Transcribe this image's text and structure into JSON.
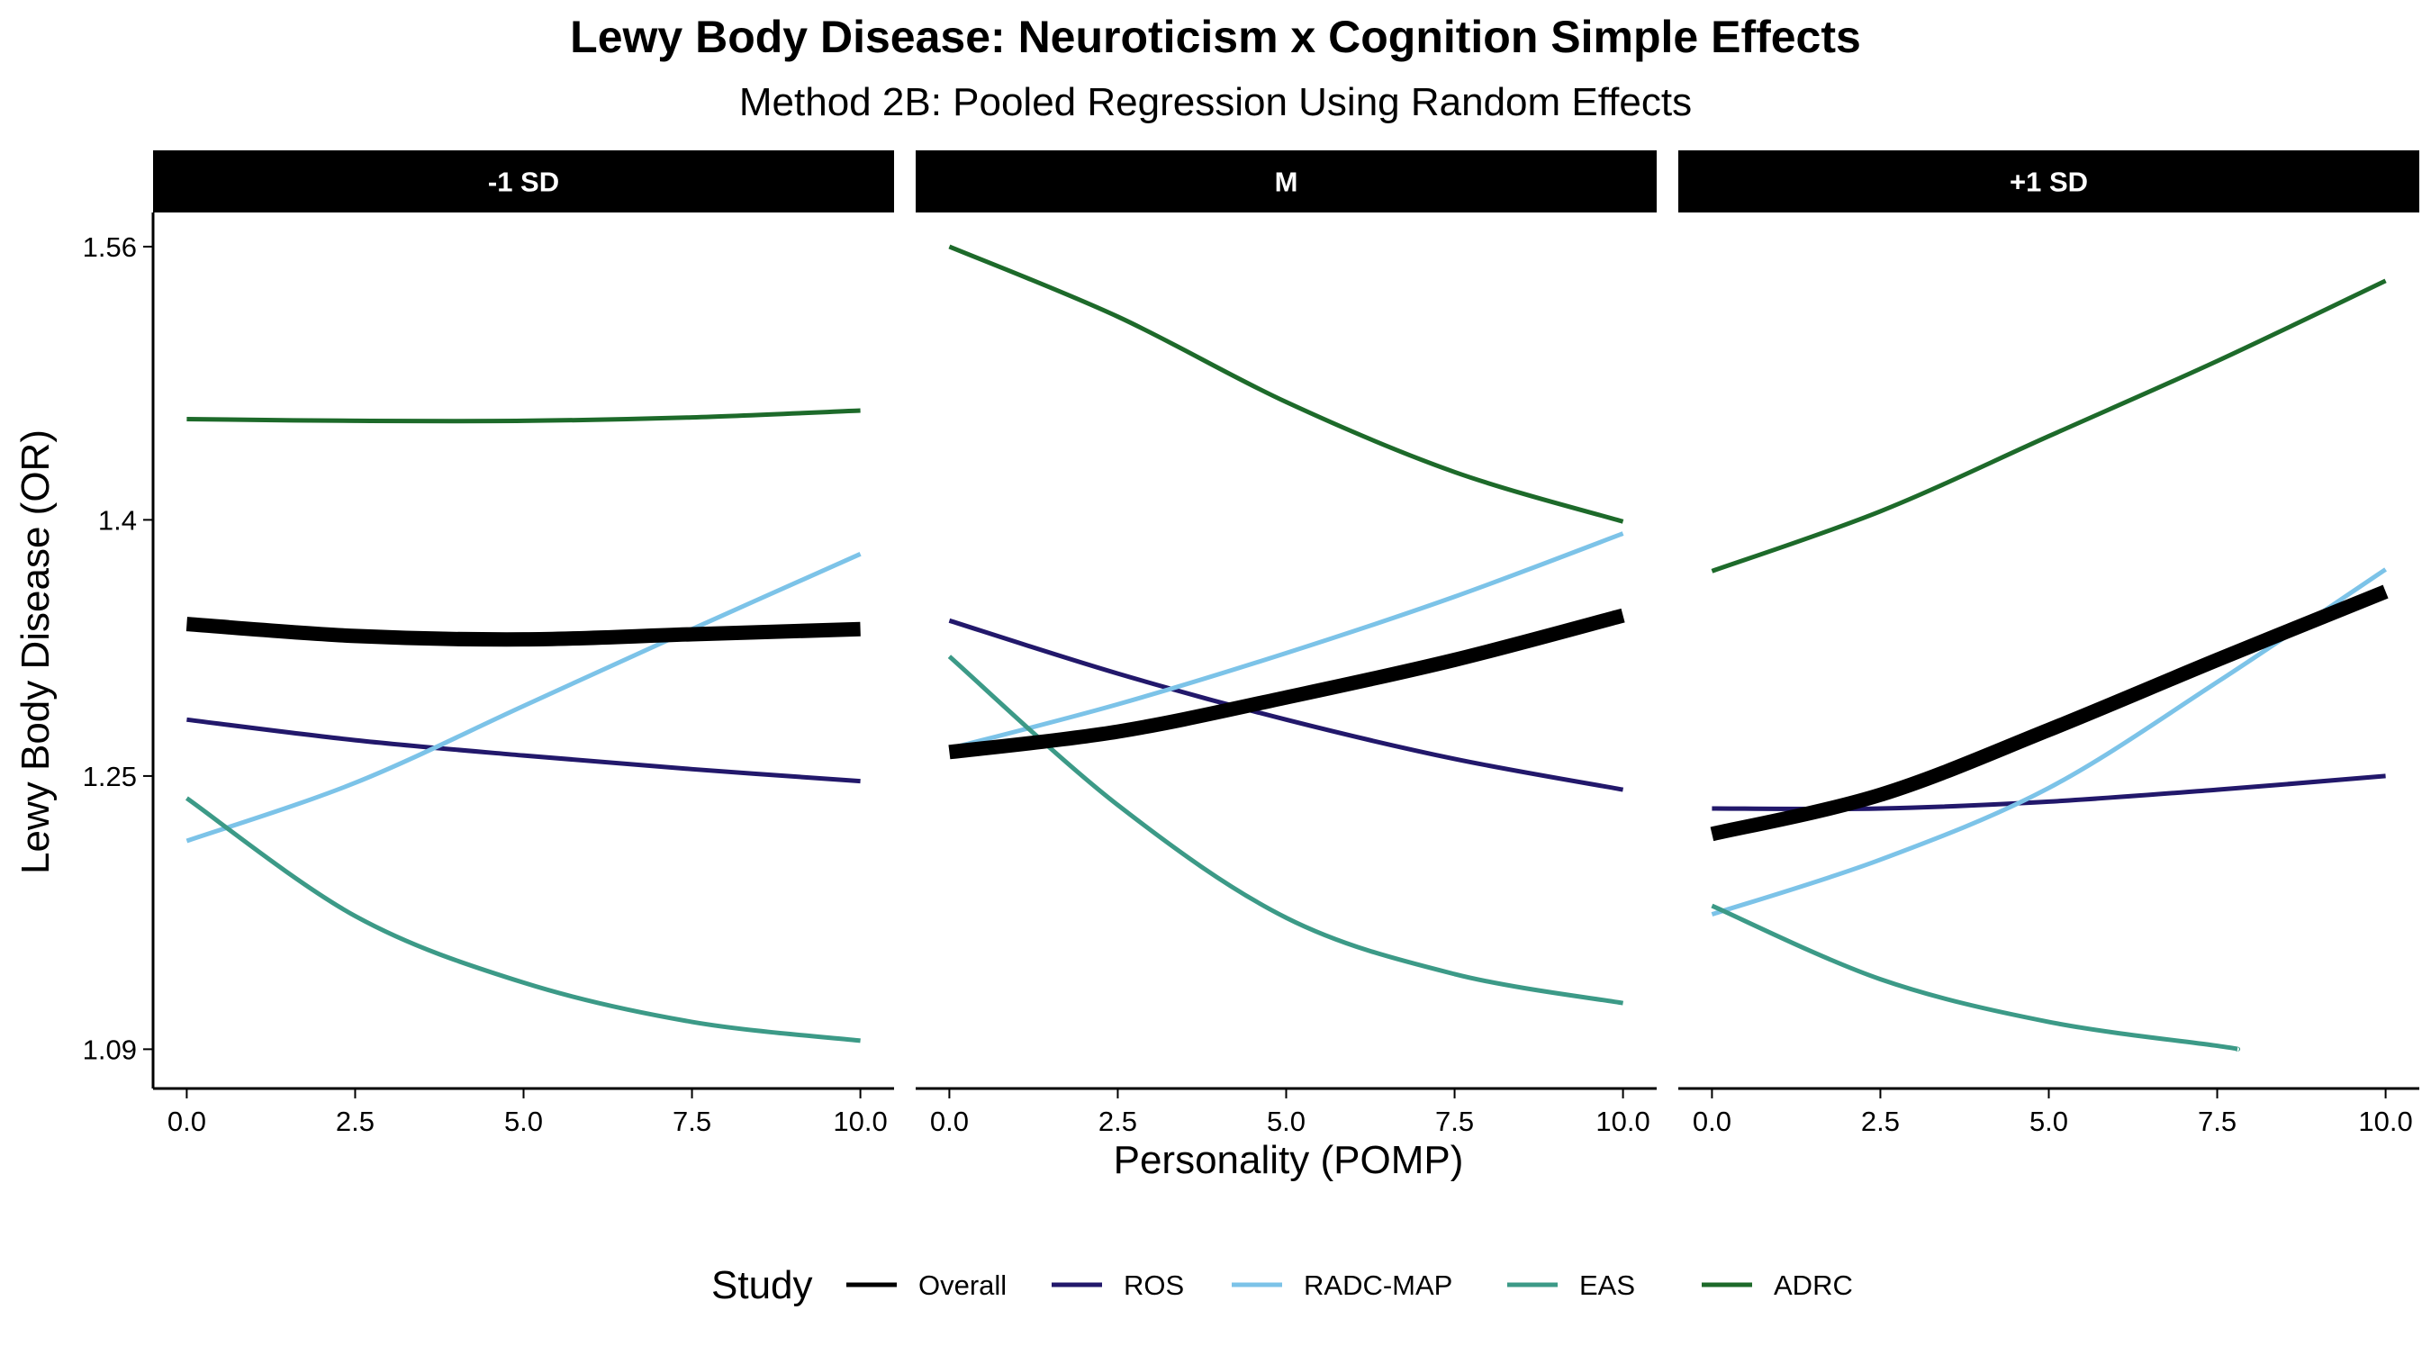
{
  "chart_data": {
    "type": "line",
    "title": "Lewy Body Disease: Neuroticism x Cognition Simple Effects",
    "subtitle": "Method 2B: Pooled Regression Using Random Effects",
    "xlabel": "Personality (POMP)",
    "ylabel": "Lewy Body Disease (OR)",
    "x_ticks": [
      "0.0",
      "2.5",
      "5.0",
      "7.5",
      "10.0"
    ],
    "y_ticks": [
      "1.09",
      "1.25",
      "1.4",
      "1.56"
    ],
    "xlim": [
      -0.5,
      10.5
    ],
    "ylim": [
      1.067,
      1.58
    ],
    "y_tick_values": [
      1.09,
      1.25,
      1.4,
      1.56
    ],
    "legend": {
      "title": "Study",
      "position": "bottom"
    },
    "series_styles": [
      {
        "name": "Overall",
        "color": "#000000",
        "emphasis": true
      },
      {
        "name": "ROS",
        "color": "#22186b",
        "emphasis": false
      },
      {
        "name": "RADC-MAP",
        "color": "#7cc3e8",
        "emphasis": false
      },
      {
        "name": "EAS",
        "color": "#3c9a87",
        "emphasis": false
      },
      {
        "name": "ADRC",
        "color": "#1d6a2a",
        "emphasis": false
      }
    ],
    "facets": [
      {
        "label": "-1 SD",
        "series": [
          {
            "name": "Overall",
            "x": [
              0,
              2.5,
              5,
              7.5,
              10
            ],
            "y": [
              1.339,
              1.332,
              1.33,
              1.333,
              1.336
            ]
          },
          {
            "name": "ROS",
            "x": [
              0,
              2.5,
              5,
              7.5,
              10
            ],
            "y": [
              1.283,
              1.271,
              1.262,
              1.254,
              1.247
            ]
          },
          {
            "name": "RADC-MAP",
            "x": [
              0,
              2.5,
              5,
              7.5,
              10
            ],
            "y": [
              1.212,
              1.246,
              1.291,
              1.336,
              1.38
            ]
          },
          {
            "name": "EAS",
            "x": [
              0,
              2.5,
              5,
              7.5,
              10
            ],
            "y": [
              1.237,
              1.168,
              1.129,
              1.106,
              1.095
            ]
          },
          {
            "name": "ADRC",
            "x": [
              0,
              2.5,
              5,
              7.5,
              10
            ],
            "y": [
              1.459,
              1.458,
              1.458,
              1.46,
              1.464
            ]
          }
        ]
      },
      {
        "label": "M",
        "series": [
          {
            "name": "Overall",
            "x": [
              0,
              2.5,
              5,
              7.5,
              10
            ],
            "y": [
              1.264,
              1.276,
              1.296,
              1.318,
              1.344
            ]
          },
          {
            "name": "ROS",
            "x": [
              0,
              2.5,
              5,
              7.5,
              10
            ],
            "y": [
              1.341,
              1.31,
              1.283,
              1.26,
              1.242
            ]
          },
          {
            "name": "RADC-MAP",
            "x": [
              0,
              2.5,
              5,
              7.5,
              10
            ],
            "y": [
              1.266,
              1.292,
              1.322,
              1.355,
              1.392
            ]
          },
          {
            "name": "EAS",
            "x": [
              0,
              2.5,
              5,
              7.5,
              10
            ],
            "y": [
              1.32,
              1.233,
              1.167,
              1.134,
              1.117
            ]
          },
          {
            "name": "ADRC",
            "x": [
              0,
              2.5,
              5,
              7.5,
              10
            ],
            "y": [
              1.56,
              1.519,
              1.469,
              1.428,
              1.399
            ]
          }
        ]
      },
      {
        "label": "+1 SD",
        "series": [
          {
            "name": "Overall",
            "x": [
              0,
              2.5,
              5,
              7.5,
              10
            ],
            "y": [
              1.216,
              1.239,
              1.277,
              1.318,
              1.358
            ]
          },
          {
            "name": "ROS",
            "x": [
              0,
              2.5,
              5,
              7.5,
              10
            ],
            "y": [
              1.231,
              1.231,
              1.235,
              1.242,
              1.25
            ]
          },
          {
            "name": "RADC-MAP",
            "x": [
              0,
              2.5,
              5,
              7.5,
              10
            ],
            "y": [
              1.169,
              1.201,
              1.243,
              1.305,
              1.371
            ]
          },
          {
            "name": "EAS",
            "x": [
              0,
              2.5,
              5,
              7.5,
              7.8
            ],
            "y": [
              1.174,
              1.131,
              1.106,
              1.092,
              1.09
            ]
          },
          {
            "name": "ADRC",
            "x": [
              0,
              2.5,
              5,
              7.5,
              10
            ],
            "y": [
              1.37,
              1.405,
              1.449,
              1.493,
              1.54
            ]
          }
        ]
      }
    ]
  }
}
